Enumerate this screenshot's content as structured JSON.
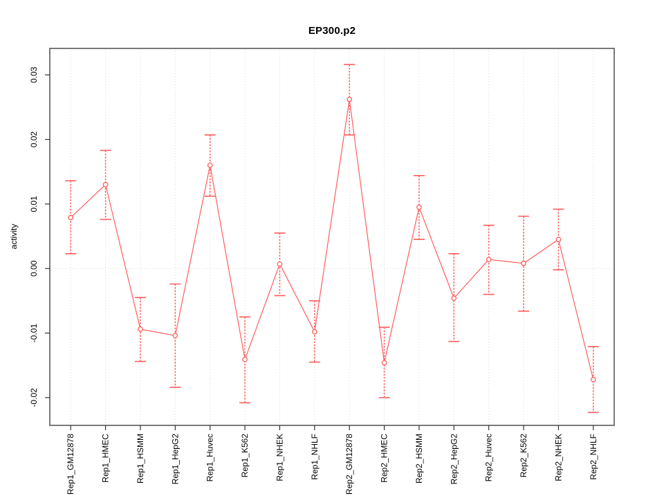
{
  "figure": {
    "title": "EP300.p2",
    "y_axis_label": "activity"
  },
  "chart_data": {
    "type": "line",
    "title": "EP300.p2",
    "xlabel": "",
    "ylabel": "activity",
    "legend": "none",
    "grid": "vertical dotted gridline at each category; horizontal dotted line at y=0",
    "marker": "open-circle",
    "error_bars": true,
    "categories": [
      "Rep1_GM12878",
      "Rep1_HMEC",
      "Rep1_HSMM",
      "Rep1_HepG2",
      "Rep1_Huvec",
      "Rep1_K562",
      "Rep1_NHEK",
      "Rep1_NHLF",
      "Rep2_GM12878",
      "Rep2_HMEC",
      "Rep2_HSMM",
      "Rep2_HepG2",
      "Rep2_Huvec",
      "Rep2_K562",
      "Rep2_NHEK",
      "Rep2_NHLF"
    ],
    "series": [
      {
        "name": "activity",
        "values": [
          0.0079,
          0.013,
          -0.0094,
          -0.0104,
          0.016,
          -0.0141,
          0.0007,
          -0.0098,
          0.0262,
          -0.0146,
          0.0095,
          -0.0046,
          0.0014,
          0.0008,
          0.0045,
          -0.0172
        ],
        "error_low": [
          0.0023,
          0.0076,
          -0.0144,
          -0.0184,
          0.0112,
          -0.0208,
          -0.0042,
          -0.0145,
          0.0207,
          -0.02,
          0.0045,
          -0.0113,
          -0.004,
          -0.0066,
          -0.0002,
          -0.0223
        ],
        "error_high": [
          0.0136,
          0.0183,
          -0.0045,
          -0.0024,
          0.0207,
          -0.0075,
          0.0055,
          -0.005,
          0.0316,
          -0.0091,
          0.0144,
          0.0023,
          0.0067,
          0.0081,
          0.0092,
          -0.0121
        ]
      }
    ],
    "yticks": [
      -0.02,
      -0.01,
      0,
      0.01,
      0.02,
      0.03
    ],
    "ytick_labels": [
      "-0.02",
      "-0.01",
      "0.00",
      "0.01",
      "0.02",
      "0.03"
    ],
    "ylim": [
      -0.0243,
      0.0341
    ],
    "colors": {
      "series": "#ff5c5c",
      "series_light": "#ff8585",
      "grid": "#d9d9d9",
      "frame": "#4d4d4d",
      "tick": "#333333",
      "text": "#000000",
      "background": "#ffffff"
    }
  }
}
